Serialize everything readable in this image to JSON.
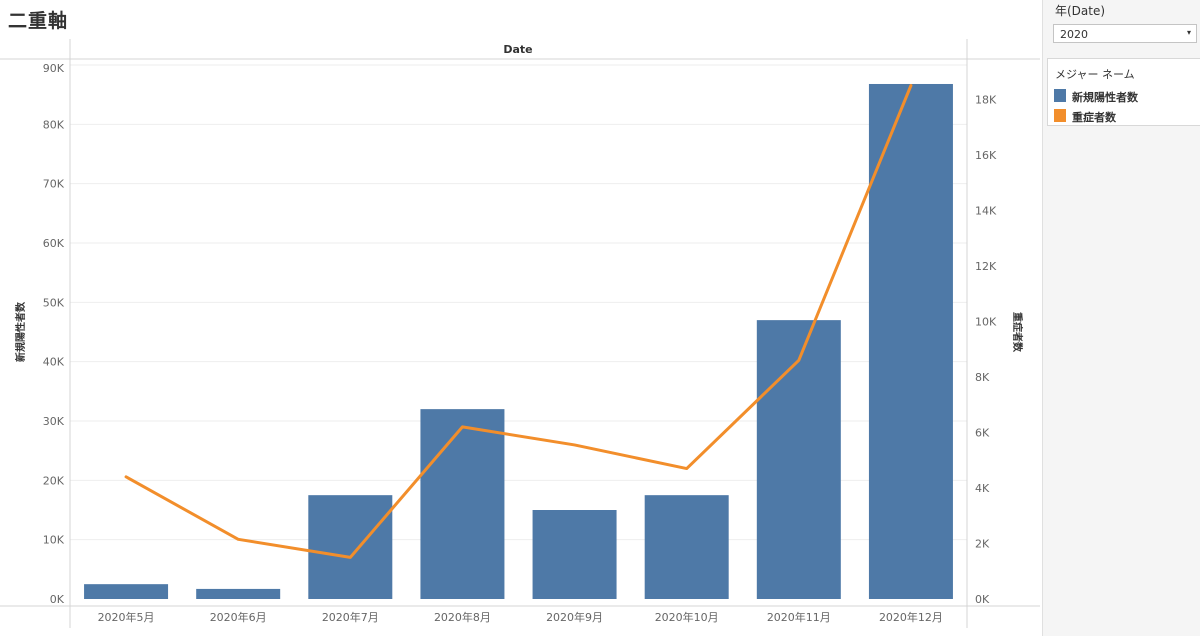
{
  "page_title": "二重軸",
  "filter": {
    "title": "年(Date)",
    "selected": "2020",
    "dropdown_icon": "▾"
  },
  "legend": {
    "title": "メジャー ネーム",
    "items": [
      {
        "label": "新規陽性者数",
        "color": "#4e79a7"
      },
      {
        "label": "重症者数",
        "color": "#f28e2b"
      }
    ]
  },
  "chart_data": {
    "type": "bar",
    "column_header": "Date",
    "categories": [
      "2020年5月",
      "2020年6月",
      "2020年7月",
      "2020年8月",
      "2020年9月",
      "2020年10月",
      "2020年11月",
      "2020年12月"
    ],
    "series": [
      {
        "name": "新規陽性者数",
        "type": "bar",
        "axis": "left",
        "color": "#4e79a7",
        "values": [
          2500,
          1700,
          17500,
          32000,
          15000,
          17500,
          47000,
          86800
        ]
      },
      {
        "name": "重症者数",
        "type": "line",
        "axis": "right",
        "color": "#f28e2b",
        "values": [
          4400,
          2150,
          1500,
          6200,
          5550,
          4700,
          8600,
          18500
        ]
      }
    ],
    "y_left": {
      "label": "新規陽性者数",
      "ylim": [
        0,
        90000
      ],
      "ticks": [
        0,
        10000,
        20000,
        30000,
        40000,
        50000,
        60000,
        70000,
        80000,
        90000
      ],
      "tick_labels": [
        "0K",
        "10K",
        "20K",
        "30K",
        "40K",
        "50K",
        "60K",
        "70K",
        "80K",
        "90K"
      ]
    },
    "y_right": {
      "label": "重症者数",
      "ylim": [
        0,
        18500
      ],
      "ticks": [
        0,
        2000,
        4000,
        6000,
        8000,
        10000,
        12000,
        14000,
        16000,
        18000
      ],
      "tick_labels": [
        "0K",
        "2K",
        "4K",
        "6K",
        "8K",
        "10K",
        "12K",
        "14K",
        "16K",
        "18K"
      ]
    },
    "grid": true,
    "legend_position": "right"
  }
}
